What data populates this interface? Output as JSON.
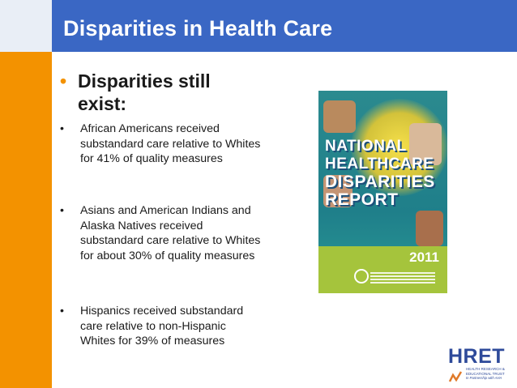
{
  "slide": {
    "title": "Disparities in Health Care",
    "main_bullet": "Disparities still exist:",
    "sub_bullets": [
      "African Americans received substandard care relative to Whites for 41% of quality measures",
      "Asians and American Indians and Alaska Natives received substandard care relative to Whites for about 30% of quality measures",
      "Hispanics received substandard care relative to non-Hispanic Whites for 39% of measures"
    ]
  },
  "report_cover": {
    "line1": "NATIONAL",
    "line2": "HEALTHCARE",
    "line3": "DISPARITIES",
    "line4": "REPORT",
    "year": "2011"
  },
  "logo": {
    "wordmark": "HRET",
    "line1": "HEALTH RESEARCH &",
    "line2": "EDUCATIONAL TRUST",
    "line3": "In Partnership with AHA"
  },
  "colors": {
    "title_bar": "#3a67c4",
    "accent_bar": "#f39200",
    "cover_teal": "#1f7f8a",
    "cover_green": "#a5c43c"
  }
}
